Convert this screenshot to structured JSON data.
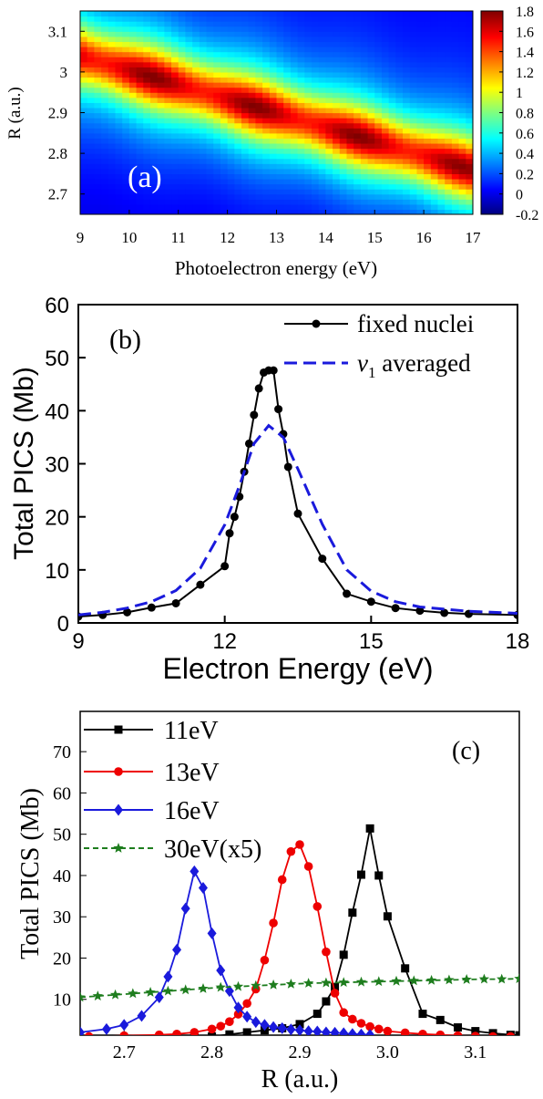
{
  "chart_data": [
    {
      "panel": "a",
      "type": "heatmap",
      "panel_label": "(a)",
      "xlabel": "Photoelectron energy (eV)",
      "ylabel": "R (a.u.)",
      "xlim": [
        9,
        17
      ],
      "ylim": [
        2.65,
        3.15
      ],
      "x_ticks": [
        9,
        10,
        11,
        12,
        13,
        14,
        15,
        16,
        17
      ],
      "y_ticks": [
        2.7,
        2.8,
        2.9,
        3.0,
        3.1
      ],
      "y_tick_labels": [
        "2.7",
        "2.8",
        "2.9",
        "3",
        "3.1"
      ],
      "colorbar_range": [
        -0.2,
        1.8
      ],
      "colorbar_ticks": [
        -0.2,
        0,
        0.2,
        0.4,
        0.6,
        0.8,
        1,
        1.2,
        1.4,
        1.6,
        1.8
      ],
      "ridge": {
        "x": [
          9,
          17
        ],
        "y": [
          3.04,
          2.76
        ],
        "peak_value": 1.8
      }
    },
    {
      "panel": "b",
      "type": "line",
      "panel_label": "(b)",
      "xlabel": "Electron Energy (eV)",
      "ylabel": "Total PICS (Mb)",
      "xlim": [
        9,
        18
      ],
      "ylim": [
        0,
        60
      ],
      "x_ticks": [
        9,
        12,
        15,
        18
      ],
      "y_ticks": [
        0,
        10,
        20,
        30,
        40,
        50,
        60
      ],
      "legend_position": "top-right",
      "series": [
        {
          "name": "fixed nuclei",
          "style": "solid-dots",
          "color": "#000000",
          "x": [
            9,
            9.5,
            10,
            10.5,
            11,
            11.5,
            12,
            12.1,
            12.2,
            12.3,
            12.4,
            12.5,
            12.6,
            12.7,
            12.8,
            12.9,
            13.0,
            13.1,
            13.2,
            13.3,
            13.5,
            14,
            14.5,
            15,
            15.5,
            16,
            16.5,
            17,
            18
          ],
          "y": [
            1.2,
            1.5,
            2.0,
            2.9,
            3.7,
            7.2,
            10.7,
            16.9,
            20,
            23.8,
            28.5,
            33.8,
            39.2,
            44.2,
            47.2,
            47.6,
            47.6,
            40.3,
            35.6,
            29.4,
            20.6,
            12.1,
            5.5,
            4.0,
            2.8,
            2.3,
            1.9,
            1.7,
            1.5
          ]
        },
        {
          "name": "averaged",
          "name_prefix": "v",
          "name_sub": "1",
          "style": "dashed",
          "color": "#1a1adc",
          "x": [
            9,
            9.5,
            10,
            10.5,
            11,
            11.5,
            12,
            12.3,
            12.6,
            12.9,
            13.2,
            13.5,
            14,
            14.5,
            15,
            15.5,
            16,
            17,
            18
          ],
          "y": [
            1.5,
            2.0,
            2.8,
            4.0,
            6.1,
            10.3,
            18.5,
            25.8,
            33.8,
            37.2,
            35.0,
            29.0,
            18.6,
            10.0,
            6.0,
            4.0,
            3.0,
            2.2,
            1.8
          ]
        }
      ]
    },
    {
      "panel": "c",
      "type": "line",
      "panel_label": "(c)",
      "xlabel": "R (a.u.)",
      "ylabel": "Total PICS (Mb)",
      "xlim": [
        2.65,
        3.15
      ],
      "ylim": [
        0,
        80
      ],
      "x_ticks": [
        2.7,
        2.8,
        2.9,
        3.0,
        3.1
      ],
      "x_tick_labels": [
        "2.7",
        "2.8",
        "2.9",
        "3.0",
        "3.1"
      ],
      "y_ticks": [
        10,
        20,
        30,
        40,
        50,
        60,
        70
      ],
      "legend_position": "top-left",
      "series": [
        {
          "name": "11eV",
          "marker": "square",
          "color": "#000000",
          "x": [
            2.78,
            2.8,
            2.82,
            2.84,
            2.86,
            2.88,
            2.9,
            2.92,
            2.93,
            2.94,
            2.95,
            2.96,
            2.97,
            2.98,
            2.99,
            3.0,
            3.02,
            3.04,
            3.06,
            3.08,
            3.1,
            3.12,
            3.14,
            3.15
          ],
          "y": [
            0.8,
            1.0,
            1.5,
            2.0,
            2.5,
            3.0,
            4.0,
            6.5,
            9.5,
            13.0,
            20.8,
            31.0,
            40.2,
            51.4,
            40.0,
            30.1,
            17.5,
            6.5,
            5.0,
            3.2,
            2.3,
            1.8,
            1.4,
            1.3
          ]
        },
        {
          "name": "13eV",
          "marker": "circle",
          "color": "#ee0000",
          "x": [
            2.66,
            2.7,
            2.74,
            2.76,
            2.78,
            2.8,
            2.81,
            2.82,
            2.83,
            2.84,
            2.85,
            2.86,
            2.87,
            2.88,
            2.89,
            2.9,
            2.91,
            2.92,
            2.93,
            2.94,
            2.95,
            2.96,
            2.97,
            2.98,
            2.99,
            3.0,
            3.02,
            3.04,
            3.06,
            3.08,
            3.1,
            3.12,
            3.14
          ],
          "y": [
            1.0,
            1.2,
            1.4,
            1.6,
            2.0,
            2.8,
            3.5,
            4.6,
            6.4,
            9.0,
            12.5,
            19.5,
            28.5,
            39.0,
            45.8,
            47.5,
            42.2,
            32.5,
            21.5,
            11.5,
            6.8,
            5.2,
            4.2,
            3.4,
            2.8,
            2.3,
            1.9,
            1.6,
            1.4,
            1.2,
            1.1,
            1.0,
            1.0
          ]
        },
        {
          "name": "16eV",
          "marker": "diamond",
          "color": "#1a1adc",
          "x": [
            2.65,
            2.68,
            2.7,
            2.72,
            2.74,
            2.75,
            2.76,
            2.77,
            2.78,
            2.79,
            2.8,
            2.81,
            2.82,
            2.83,
            2.84,
            2.85,
            2.86,
            2.87,
            2.88,
            2.89,
            2.9,
            2.91,
            2.92,
            2.93,
            2.94,
            2.95,
            2.96,
            2.97,
            2.98
          ],
          "y": [
            2.0,
            2.8,
            3.8,
            6.0,
            10.5,
            15.5,
            22.0,
            32.0,
            41.0,
            37.0,
            26.0,
            17.0,
            12.0,
            8.0,
            5.8,
            4.5,
            3.8,
            3.3,
            3.0,
            2.7,
            2.5,
            2.3,
            2.2,
            2.0,
            1.9,
            1.8,
            1.6,
            1.5,
            1.4
          ]
        },
        {
          "name": "30eV(x5)",
          "marker": "star",
          "color": "#1e7d1e",
          "style": "dashed",
          "x": [
            2.65,
            2.67,
            2.69,
            2.71,
            2.73,
            2.75,
            2.77,
            2.79,
            2.81,
            2.83,
            2.85,
            2.87,
            2.89,
            2.91,
            2.93,
            2.95,
            2.97,
            2.99,
            3.01,
            3.03,
            3.05,
            3.07,
            3.09,
            3.11,
            3.13,
            3.15
          ],
          "y": [
            10.5,
            10.8,
            11.1,
            11.4,
            11.7,
            12.0,
            12.3,
            12.6,
            12.9,
            13.1,
            13.3,
            13.5,
            13.7,
            13.9,
            14.0,
            14.1,
            14.2,
            14.3,
            14.4,
            14.5,
            14.6,
            14.7,
            14.8,
            14.9,
            14.9,
            15.0
          ]
        }
      ]
    }
  ]
}
